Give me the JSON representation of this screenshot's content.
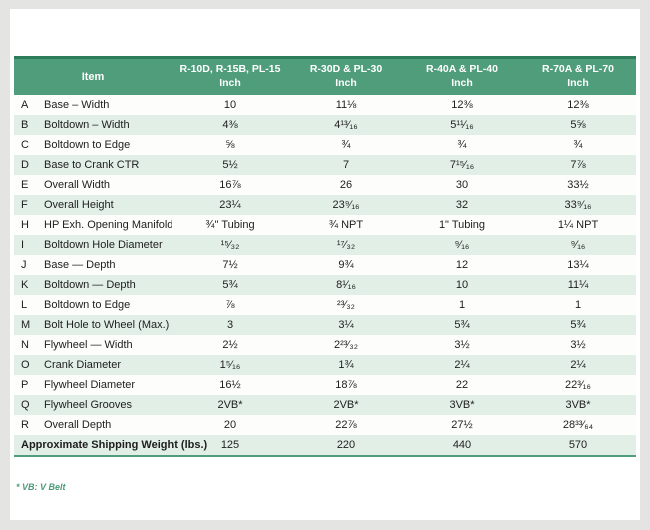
{
  "table": {
    "header": {
      "item_label": "Item",
      "columns": [
        {
          "models": "R-10D, R-15B, PL-15",
          "unit": "Inch"
        },
        {
          "models": "R-30D & PL-30",
          "unit": "Inch"
        },
        {
          "models": "R-40A & PL-40",
          "unit": "Inch"
        },
        {
          "models": "R-70A & PL-70",
          "unit": "Inch"
        }
      ]
    },
    "rows": [
      {
        "letter": "A",
        "item": "Base – Width",
        "values": [
          "10",
          "11⅛",
          "12⅜",
          "12⅜"
        ]
      },
      {
        "letter": "B",
        "item": "Boltdown – Width",
        "values": [
          "4⅜",
          "4¹³⁄₁₆",
          "5¹¹⁄₁₆",
          "5⅝"
        ]
      },
      {
        "letter": "C",
        "item": "Boltdown to Edge",
        "values": [
          "⅝",
          "¾",
          "¾",
          "¾"
        ]
      },
      {
        "letter": "D",
        "item": "Base to Crank CTR",
        "values": [
          "5½",
          "7",
          "7¹⁵⁄₁₆",
          "7⅞"
        ]
      },
      {
        "letter": "E",
        "item": "Overall Width",
        "values": [
          "16⅞",
          "26",
          "30",
          "33½"
        ]
      },
      {
        "letter": "F",
        "item": "Overall Height",
        "values": [
          "23¼",
          "23⁹⁄₁₆",
          "32",
          "33⁹⁄₁₆"
        ]
      },
      {
        "letter": "H",
        "item": "HP Exh. Opening Manifold",
        "values": [
          "¾\" Tubing",
          "¾ NPT",
          "1\" Tubing",
          "1¼ NPT"
        ]
      },
      {
        "letter": "I",
        "item": "Boltdown Hole Diameter",
        "values": [
          "¹⁵⁄₃₂",
          "¹⁷⁄₃₂",
          "⁹⁄₁₆",
          "⁹⁄₁₆"
        ]
      },
      {
        "letter": "J",
        "item": "Base — Depth",
        "values": [
          "7½",
          "9¾",
          "12",
          "13¼"
        ]
      },
      {
        "letter": "K",
        "item": "Boltdown — Depth",
        "values": [
          "5¾",
          "8¹⁄₁₆",
          "10",
          "11¼"
        ]
      },
      {
        "letter": "L",
        "item": "Boltdown to Edge",
        "values": [
          "⅞",
          "²³⁄₃₂",
          "1",
          "1"
        ]
      },
      {
        "letter": "M",
        "item": "Bolt Hole to Wheel (Max.)",
        "values": [
          "3",
          "3¼",
          "5¾",
          "5¾"
        ]
      },
      {
        "letter": "N",
        "item": "Flywheel — Width",
        "values": [
          "2½",
          "2²³⁄₃₂",
          "3½",
          "3½"
        ]
      },
      {
        "letter": "O",
        "item": "Crank Diameter",
        "values": [
          "1⁵⁄₁₆",
          "1¾",
          "2¼",
          "2¼"
        ]
      },
      {
        "letter": "P",
        "item": "Flywheel Diameter",
        "values": [
          "16½",
          "18⅞",
          "22",
          "22³⁄₁₆"
        ]
      },
      {
        "letter": "Q",
        "item": "Flywheel Grooves",
        "values": [
          "2VB*",
          "2VB*",
          "3VB*",
          "3VB*"
        ]
      },
      {
        "letter": "R",
        "item": "Overall Depth",
        "values": [
          "20",
          "22⅞",
          "27½",
          "28³³⁄₆₄"
        ]
      }
    ],
    "footer_row": {
      "item": "Approximate Shipping Weight (lbs.)",
      "values": [
        "125",
        "220",
        "440",
        "570"
      ]
    },
    "footnote": "* VB: V Belt"
  },
  "colors": {
    "header_green": "#4f9d7a",
    "top_rule_green": "#2d7c5a",
    "alt_row_green": "#e2efe7",
    "footnote_green": "#4b9b77",
    "page_gray": "#e4e4e3"
  }
}
